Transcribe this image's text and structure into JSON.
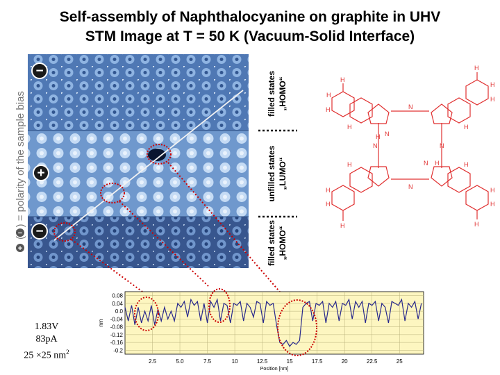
{
  "title": {
    "line1": "Self-assembly of Naphthalocyanine on graphite in UHV",
    "line2": "STM Image at T = 50 K (Vacuum-Solid Interface)"
  },
  "polarity_label": {
    "text": "( / ) = polarity of the sample bias",
    "symbols": [
      "+",
      "−"
    ]
  },
  "bias_signs": [
    "−",
    "+",
    "−"
  ],
  "band_labels": [
    {
      "line1": "filled states",
      "line2": "„HOMO“"
    },
    {
      "line1": "unfilled states",
      "line2": "„LUMO“"
    },
    {
      "line1": "filled states",
      "line2": "„HOMO“"
    }
  ],
  "scan_params": {
    "voltage": "1.83V",
    "current": "83pA",
    "size": "25 ×25 nm",
    "size_exp": "2"
  },
  "colors": {
    "molecule": "#e03030",
    "profile_line": "#28288c",
    "plot_bg": "#fdf6c0",
    "highlight": "#cc0000"
  },
  "chart_data": {
    "type": "line",
    "xlabel": "Position [nm]",
    "ylabel": "nm",
    "xlim": [
      0,
      27.2
    ],
    "ylim": [
      -0.22,
      0.1
    ],
    "x_ticks": [
      "2.5",
      "5.0",
      "7.5",
      "10",
      "12.5",
      "15",
      "17.5",
      "20",
      "22.5",
      "25"
    ],
    "x_tick_values": [
      2.5,
      5.0,
      7.5,
      10,
      12.5,
      15,
      17.5,
      20,
      22.5,
      25
    ],
    "y_ticks": [
      "0.08",
      "0.04",
      "0.0",
      "-0.04",
      "-0.08",
      "-0.12",
      "-0.16",
      "-0.2"
    ],
    "y_tick_values": [
      0.08,
      0.04,
      0.0,
      -0.04,
      -0.08,
      -0.12,
      -0.16,
      -0.2
    ],
    "x": [
      0,
      0.3,
      0.6,
      0.9,
      1.2,
      1.5,
      1.8,
      2.1,
      2.4,
      2.7,
      3.0,
      3.3,
      3.6,
      3.9,
      4.2,
      4.5,
      4.8,
      5.1,
      5.4,
      5.7,
      6.0,
      6.3,
      6.6,
      6.9,
      7.2,
      7.5,
      7.8,
      8.1,
      8.4,
      8.7,
      9.0,
      9.3,
      9.6,
      9.9,
      10.2,
      10.5,
      10.8,
      11.1,
      11.4,
      11.7,
      12.0,
      12.3,
      12.6,
      12.9,
      13.2,
      13.5,
      13.8,
      14.1,
      14.4,
      14.7,
      15.0,
      15.3,
      15.6,
      15.9,
      16.2,
      16.5,
      16.8,
      17.1,
      17.4,
      17.7,
      18.0,
      18.3,
      18.6,
      18.9,
      19.2,
      19.5,
      19.8,
      20.1,
      20.4,
      20.7,
      21.0,
      21.3,
      21.6,
      21.9,
      22.2,
      22.5,
      22.8,
      23.1,
      23.4,
      23.7,
      24.0,
      24.3,
      24.6,
      24.9,
      25.2,
      25.5,
      25.8,
      26.1,
      26.4,
      26.7,
      27.0
    ],
    "y": [
      0.02,
      -0.05,
      0.03,
      -0.07,
      0.02,
      -0.06,
      0.0,
      -0.05,
      0.03,
      -0.07,
      0.01,
      -0.05,
      0.02,
      -0.04,
      0.0,
      -0.05,
      0.04,
      0.02,
      0.05,
      -0.03,
      0.06,
      0.03,
      0.05,
      -0.05,
      0.04,
      -0.06,
      0.05,
      0.02,
      0.06,
      -0.05,
      0.04,
      0.03,
      -0.06,
      0.04,
      0.03,
      0.05,
      -0.05,
      0.04,
      0.02,
      -0.03,
      0.05,
      0.04,
      -0.06,
      0.05,
      0.03,
      0.04,
      -0.07,
      -0.16,
      -0.17,
      -0.15,
      -0.18,
      -0.16,
      -0.17,
      -0.15,
      0.02,
      0.04,
      0.05,
      -0.05,
      0.04,
      0.03,
      0.05,
      -0.06,
      0.04,
      0.02,
      0.05,
      -0.05,
      0.04,
      0.03,
      0.06,
      -0.04,
      0.05,
      0.02,
      0.05,
      -0.06,
      0.04,
      0.03,
      0.05,
      -0.05,
      0.04,
      0.02,
      -0.06,
      0.05,
      0.04,
      0.03,
      0.06,
      -0.05,
      0.04,
      0.02,
      0.05,
      -0.04,
      0.04
    ]
  }
}
